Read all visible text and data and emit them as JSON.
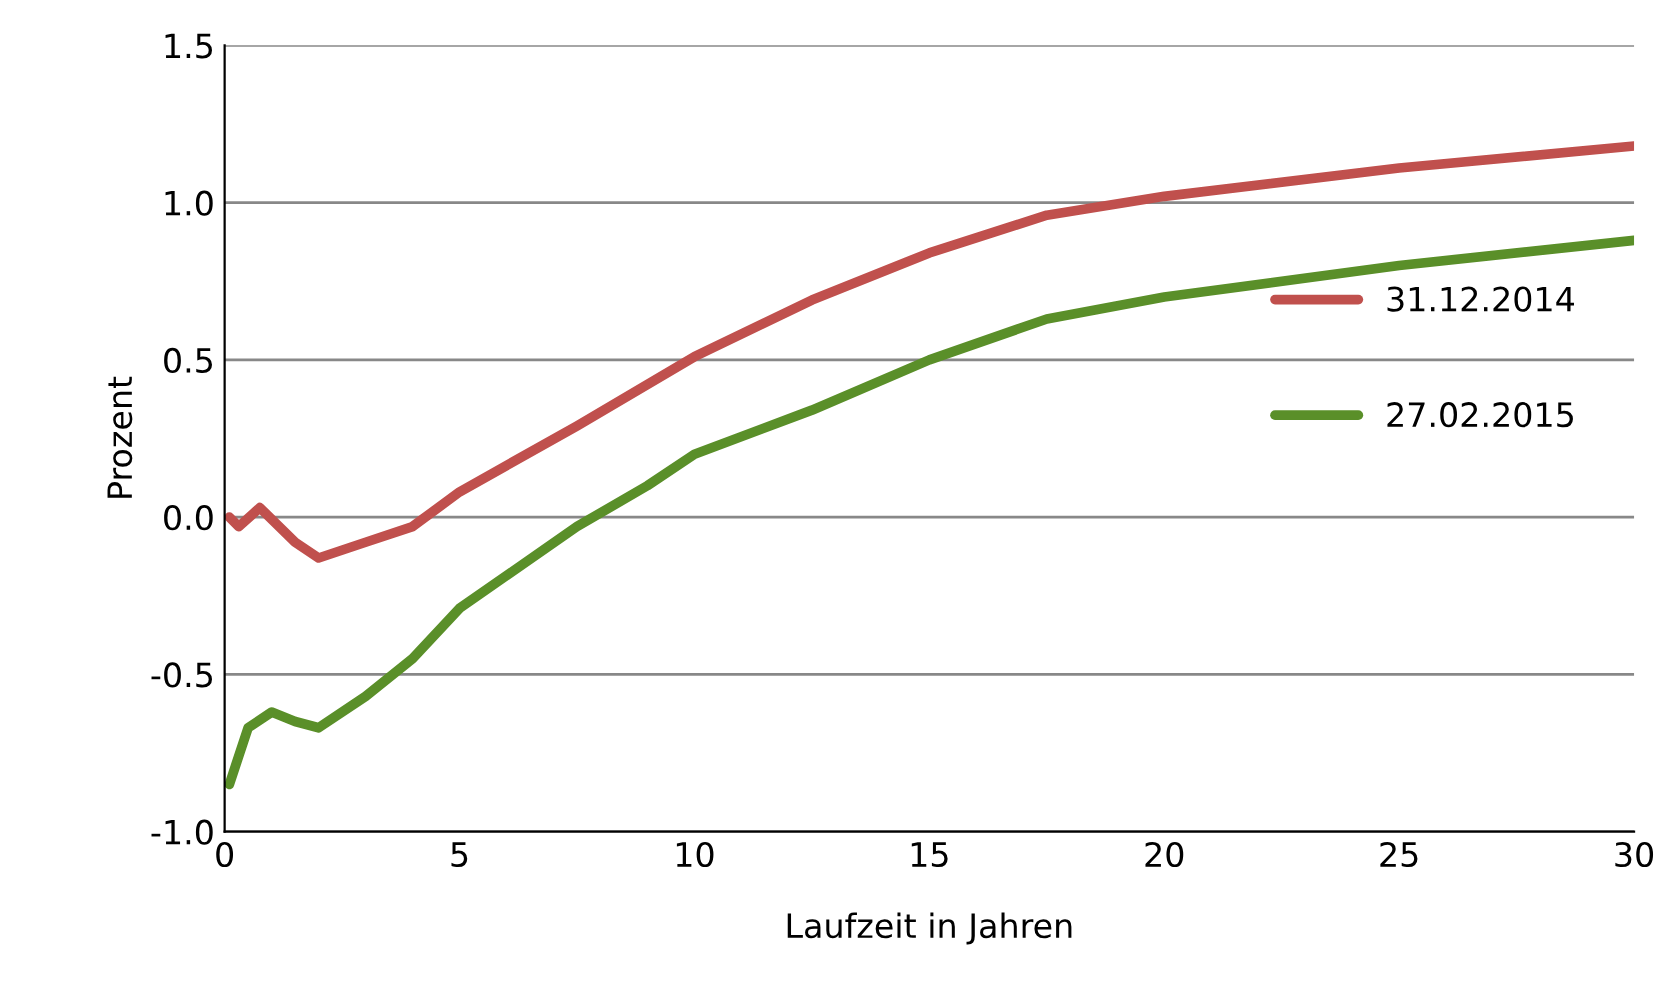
{
  "chart_data": {
    "type": "line",
    "xlabel": "Laufzeit in Jahren",
    "ylabel": "Prozent",
    "xlim": [
      0,
      30
    ],
    "xticks": [
      0,
      5,
      10,
      15,
      20,
      25,
      30
    ],
    "ylim": [
      -1.0,
      1.5
    ],
    "yticks": [
      {
        "value": -1.0,
        "label": "-1.0"
      },
      {
        "value": -0.5,
        "label": "-0.5"
      },
      {
        "value": 0.0,
        "label": "0.0"
      },
      {
        "value": 0.5,
        "label": "0.5"
      },
      {
        "value": 1.0,
        "label": "1.0"
      },
      {
        "value": 1.5,
        "label": "1.5"
      }
    ],
    "grid": "y",
    "legend": "right",
    "marker": "none",
    "line_style": "solid",
    "series": [
      {
        "name": "31.12.2014",
        "color": "#c0504d",
        "x": [
          0.1,
          0.3,
          0.75,
          1.5,
          2,
          3,
          4,
          5,
          7.5,
          10,
          12.5,
          15,
          17.5,
          20,
          25,
          30
        ],
        "values": [
          0.0,
          -0.03,
          0.03,
          -0.08,
          -0.13,
          -0.08,
          -0.03,
          0.08,
          0.29,
          0.51,
          0.69,
          0.84,
          0.96,
          1.02,
          1.11,
          1.18
        ]
      },
      {
        "name": "27.02.2015",
        "color": "#5a8f29",
        "x": [
          0.1,
          0.5,
          1,
          1.5,
          2,
          3,
          4,
          5,
          7.5,
          9,
          10,
          12.5,
          15,
          17.5,
          20,
          25,
          30
        ],
        "values": [
          -0.85,
          -0.67,
          -0.62,
          -0.65,
          -0.67,
          -0.57,
          -0.45,
          -0.29,
          -0.03,
          0.1,
          0.2,
          0.34,
          0.5,
          0.63,
          0.7,
          0.8,
          0.88
        ]
      }
    ]
  }
}
